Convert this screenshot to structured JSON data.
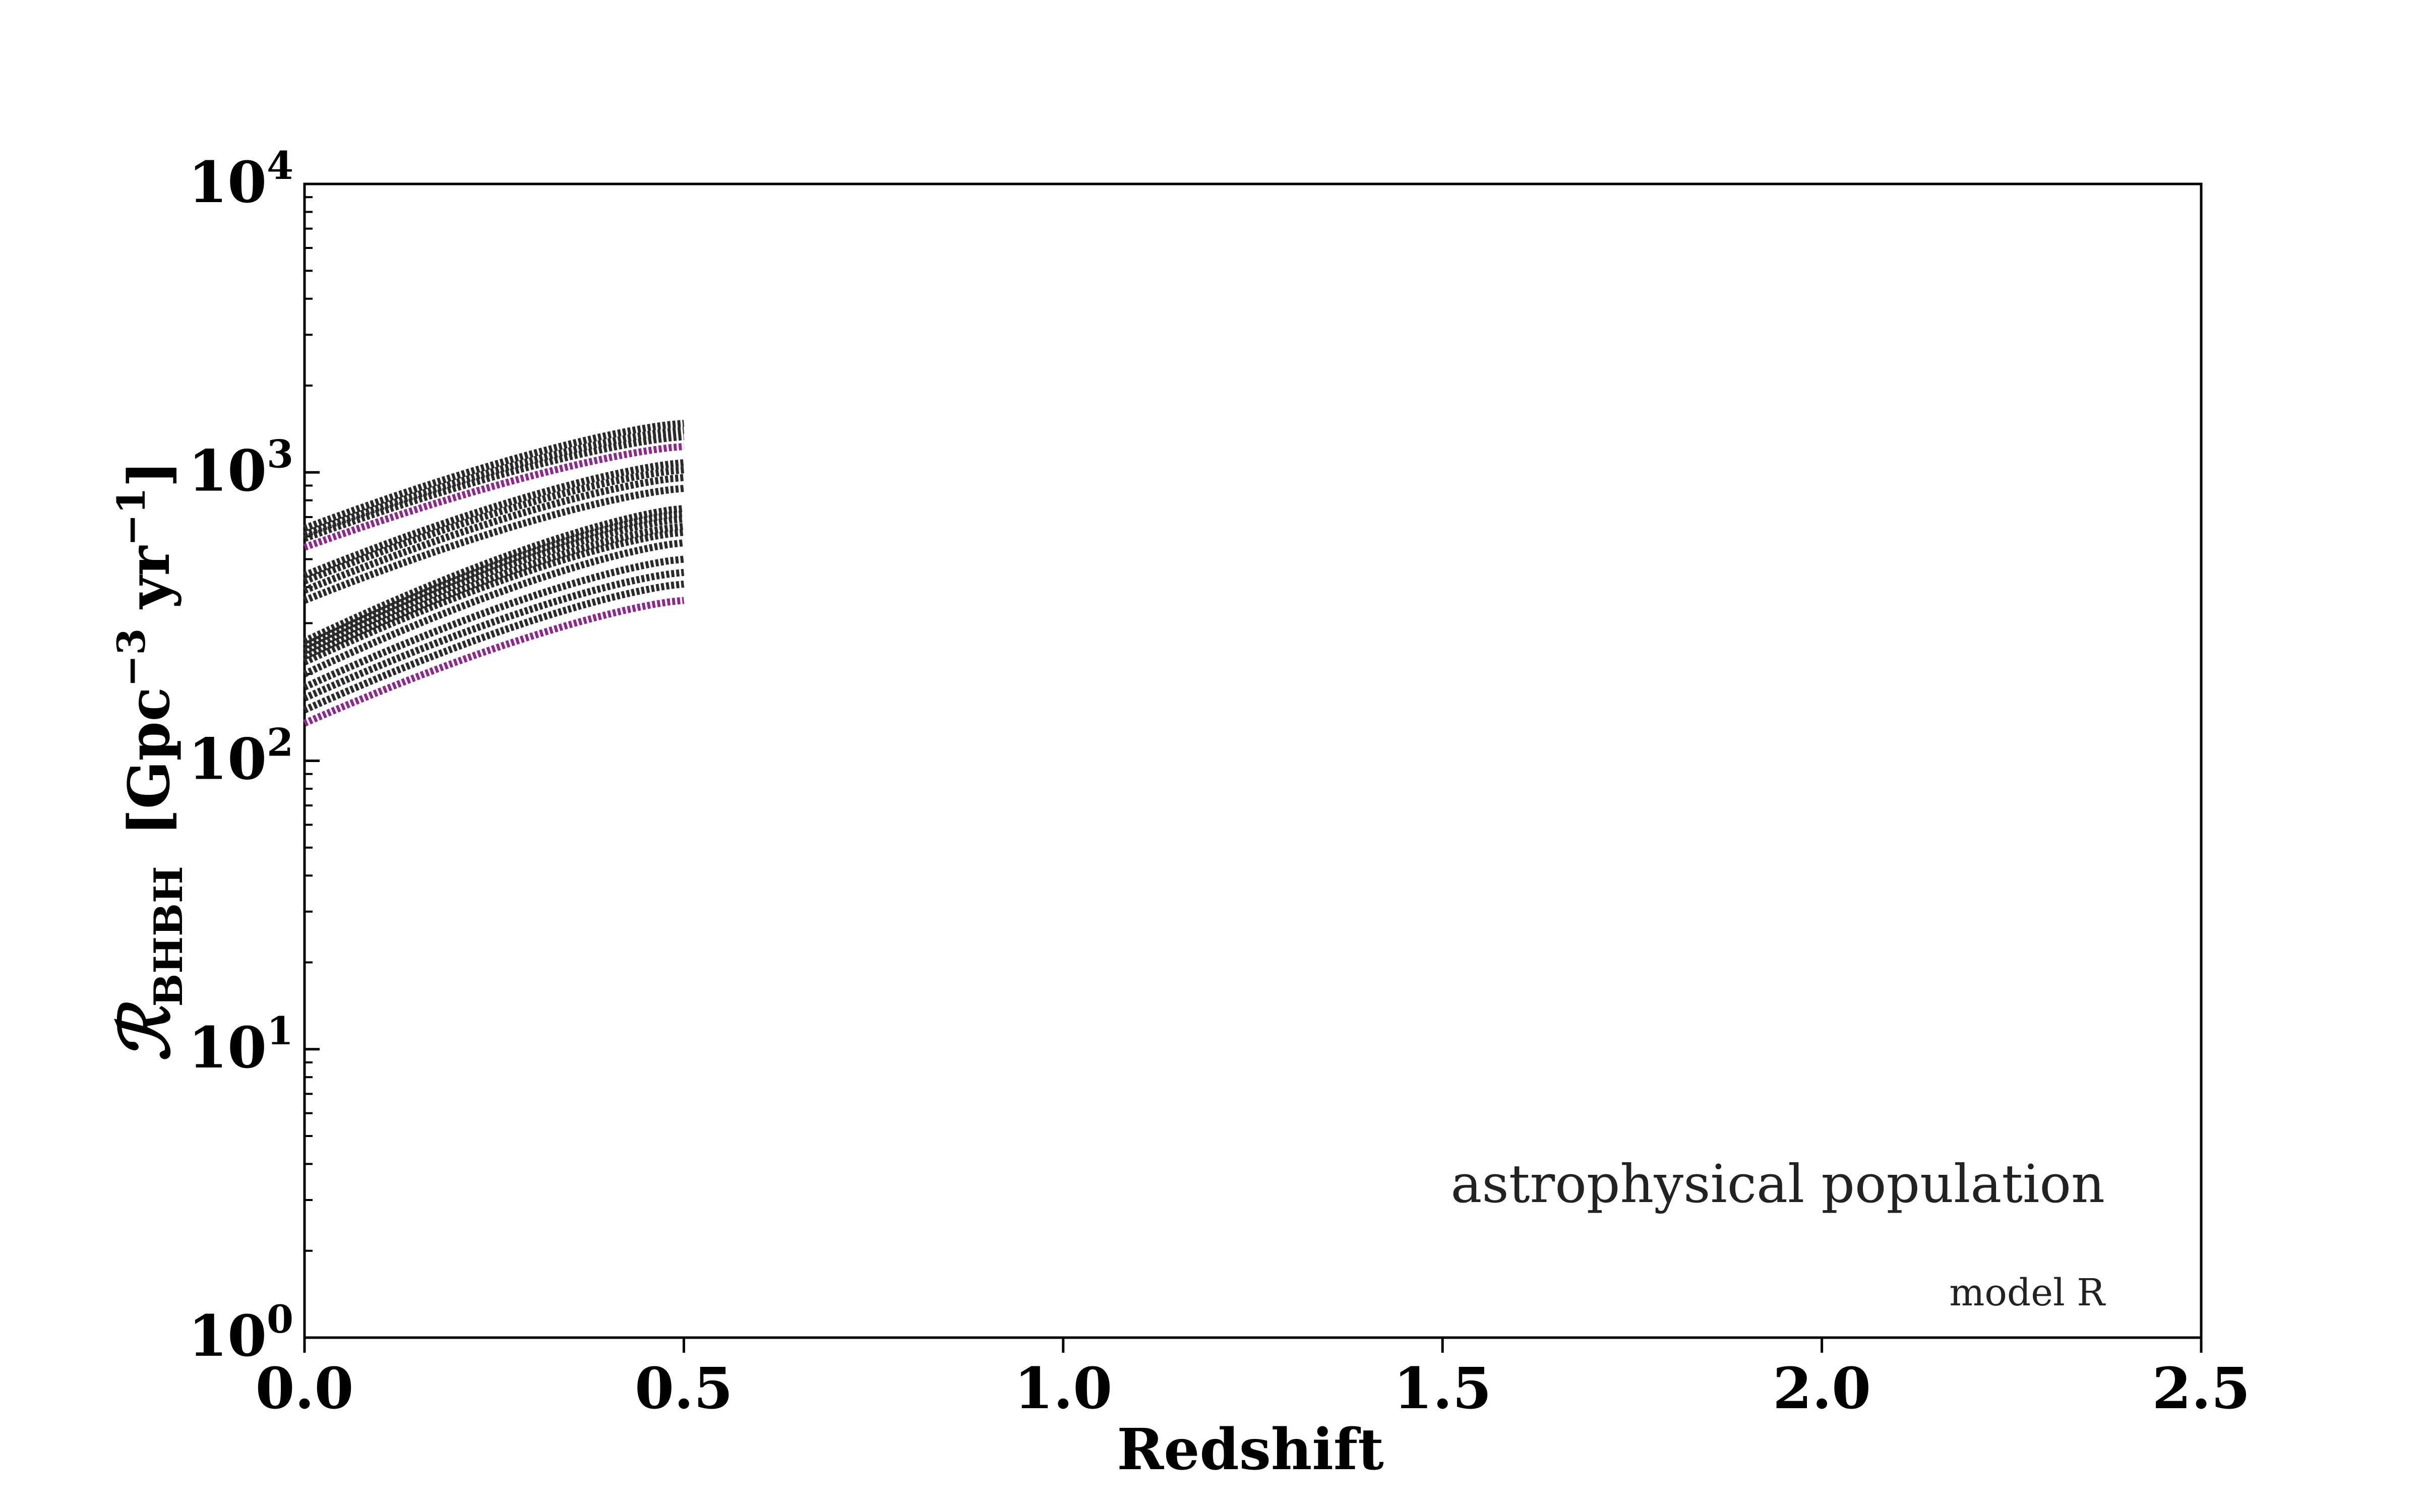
{
  "chart_data": {
    "type": "line",
    "xlabel": "Redshift",
    "ylabel": {
      "symbol": "ℛ",
      "subscript": "BHBH",
      "unit_prefix": "[Gpc",
      "unit_exp1": "−3",
      "unit_mid": " yr",
      "unit_exp2": "−1",
      "unit_suffix": "]"
    },
    "xlim": [
      0.0,
      2.5
    ],
    "ylim": [
      1,
      10000
    ],
    "yscale": "log",
    "grid": false,
    "x_ticks": [
      "0.0",
      "0.5",
      "1.0",
      "1.5",
      "2.0",
      "2.5"
    ],
    "y_ticks": [
      {
        "base": "10",
        "exp": "0"
      },
      {
        "base": "10",
        "exp": "1"
      },
      {
        "base": "10",
        "exp": "2"
      },
      {
        "base": "10",
        "exp": "3"
      },
      {
        "base": "10",
        "exp": "4"
      }
    ],
    "annotations": [
      "astrophysical population",
      "model R"
    ],
    "colors": {
      "dark": "#2a2a2a",
      "magenta": "#8b2a8b"
    },
    "series": [
      {
        "color": "#2a2a2a",
        "values": [
          [
            0.0,
            640
          ],
          [
            0.5,
            1480
          ]
        ]
      },
      {
        "color": "#2a2a2a",
        "values": [
          [
            0.0,
            610
          ],
          [
            0.5,
            1400
          ]
        ]
      },
      {
        "color": "#2a2a2a",
        "values": [
          [
            0.0,
            590
          ],
          [
            0.5,
            1330
          ]
        ]
      },
      {
        "color": "#8b2a8b",
        "values": [
          [
            0.0,
            550
          ],
          [
            0.5,
            1230
          ]
        ]
      },
      {
        "color": "#2a2a2a",
        "values": [
          [
            0.0,
            440
          ],
          [
            0.5,
            1080
          ]
        ]
      },
      {
        "color": "#2a2a2a",
        "values": [
          [
            0.0,
            420
          ],
          [
            0.5,
            1020
          ]
        ]
      },
      {
        "color": "#2a2a2a",
        "values": [
          [
            0.0,
            390
          ],
          [
            0.5,
            960
          ]
        ]
      },
      {
        "color": "#2a2a2a",
        "values": [
          [
            0.0,
            360
          ],
          [
            0.5,
            880
          ]
        ]
      },
      {
        "color": "#2a2a2a",
        "values": [
          [
            0.0,
            260
          ],
          [
            0.5,
            750
          ]
        ]
      },
      {
        "color": "#2a2a2a",
        "values": [
          [
            0.0,
            250
          ],
          [
            0.5,
            720
          ]
        ]
      },
      {
        "color": "#2a2a2a",
        "values": [
          [
            0.0,
            240
          ],
          [
            0.5,
            690
          ]
        ]
      },
      {
        "color": "#2a2a2a",
        "values": [
          [
            0.0,
            230
          ],
          [
            0.5,
            650
          ]
        ]
      },
      {
        "color": "#2a2a2a",
        "values": [
          [
            0.0,
            220
          ],
          [
            0.5,
            620
          ]
        ]
      },
      {
        "color": "#2a2a2a",
        "values": [
          [
            0.0,
            200
          ],
          [
            0.5,
            570
          ]
        ]
      },
      {
        "color": "#2a2a2a",
        "values": [
          [
            0.0,
            180
          ],
          [
            0.5,
            500
          ]
        ]
      },
      {
        "color": "#2a2a2a",
        "values": [
          [
            0.0,
            165
          ],
          [
            0.5,
            450
          ]
        ]
      },
      {
        "color": "#2a2a2a",
        "values": [
          [
            0.0,
            150
          ],
          [
            0.5,
            410
          ]
        ]
      },
      {
        "color": "#8b2a8b",
        "values": [
          [
            0.0,
            135
          ],
          [
            0.5,
            360
          ]
        ]
      }
    ]
  }
}
